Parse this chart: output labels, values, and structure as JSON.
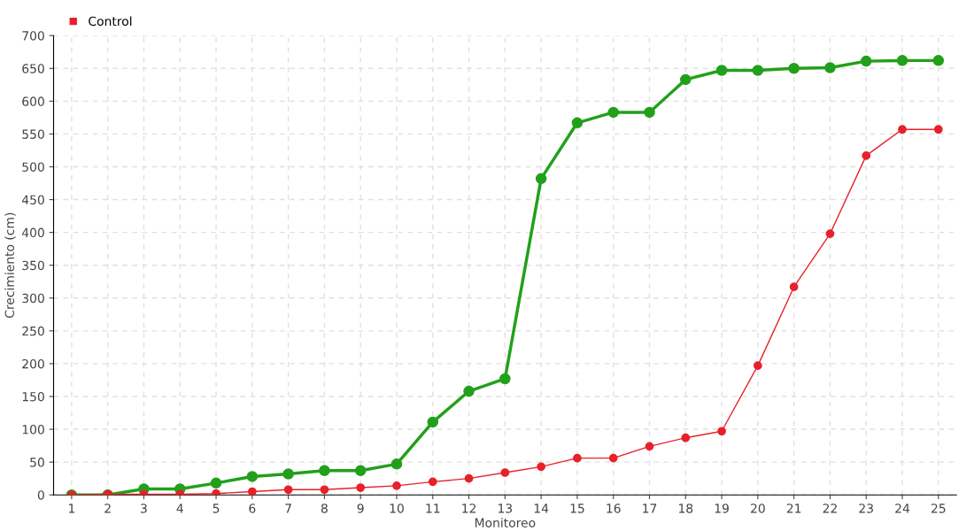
{
  "chart_data": {
    "type": "line",
    "xlabel": "Monitoreo",
    "ylabel": "Crecimiento (cm)",
    "categories": [
      "1",
      "2",
      "3",
      "4",
      "5",
      "6",
      "7",
      "8",
      "9",
      "10",
      "11",
      "12",
      "13",
      "14",
      "15",
      "16",
      "17",
      "18",
      "19",
      "20",
      "21",
      "22",
      "23",
      "24",
      "25"
    ],
    "series": [
      {
        "color": "#22a01b",
        "values": [
          0,
          0,
          9,
          9,
          18,
          28,
          32,
          37,
          37,
          47,
          111,
          158,
          177,
          482,
          567,
          583,
          583,
          633,
          647,
          647,
          650,
          651,
          661,
          662,
          662
        ]
      },
      {
        "name": "Control",
        "color": "#e8202a",
        "values": [
          0,
          1,
          1,
          1,
          2,
          5,
          8,
          8,
          11,
          14,
          20,
          25,
          34,
          43,
          56,
          56,
          74,
          87,
          97,
          197,
          317,
          398,
          517,
          557,
          557
        ]
      }
    ],
    "ylim": [
      0,
      700
    ],
    "yticks": [
      0,
      50,
      100,
      150,
      200,
      250,
      300,
      350,
      400,
      450,
      500,
      550,
      600,
      650,
      700
    ],
    "grid": true,
    "legend": "top left",
    "marker": "circle",
    "line_style": "solid"
  }
}
